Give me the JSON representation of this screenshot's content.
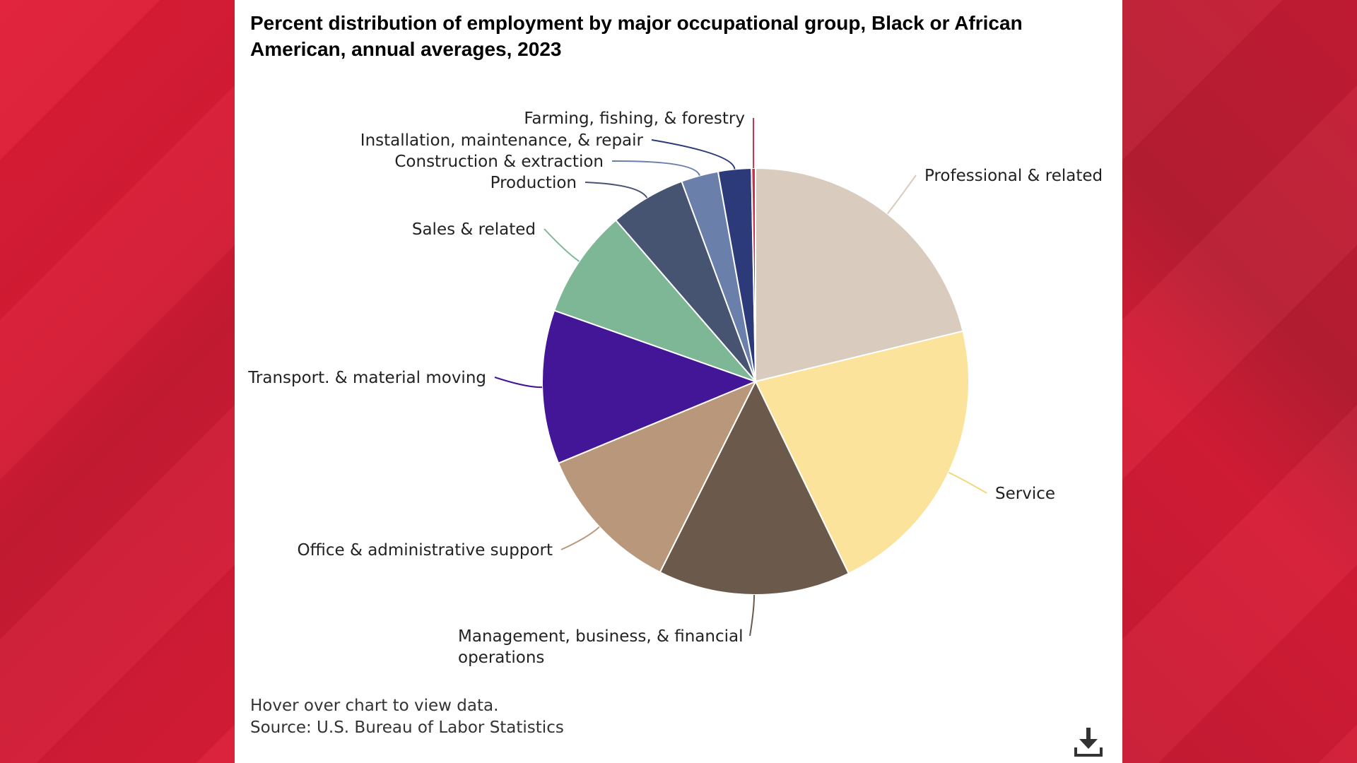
{
  "chart_data": {
    "type": "pie",
    "title": "Percent distribution of employment by major occupational group, Black or African American, annual averages, 2023",
    "slices": [
      {
        "label": "Professional & related",
        "value": 21.1,
        "color": "#d9cbbd"
      },
      {
        "label": "Service",
        "value": 21.5,
        "color": "#fce39b"
      },
      {
        "label": "Management, business, & financial operations",
        "value": 14.5,
        "color": "#6b5a4b"
      },
      {
        "label": "Office & administrative support",
        "value": 11.3,
        "color": "#b8977b"
      },
      {
        "label": "Transport. & material moving",
        "value": 11.6,
        "color": "#431597"
      },
      {
        "label": "Sales & related",
        "value": 8.2,
        "color": "#7db796"
      },
      {
        "label": "Production",
        "value": 5.7,
        "color": "#465472"
      },
      {
        "label": "Construction & extraction",
        "value": 2.8,
        "color": "#6b7fab"
      },
      {
        "label": "Installation, maintenance, & repair",
        "value": 2.5,
        "color": "#2c3a7a"
      },
      {
        "label": "Farming, fishing, & forestry",
        "value": 0.3,
        "color": "#c8334e"
      }
    ],
    "legend": "none"
  },
  "footnote": {
    "hover": "Hover over chart to view data.",
    "source": "Source: U.S. Bureau of Labor Statistics"
  },
  "icons": {
    "download": "download-icon"
  }
}
